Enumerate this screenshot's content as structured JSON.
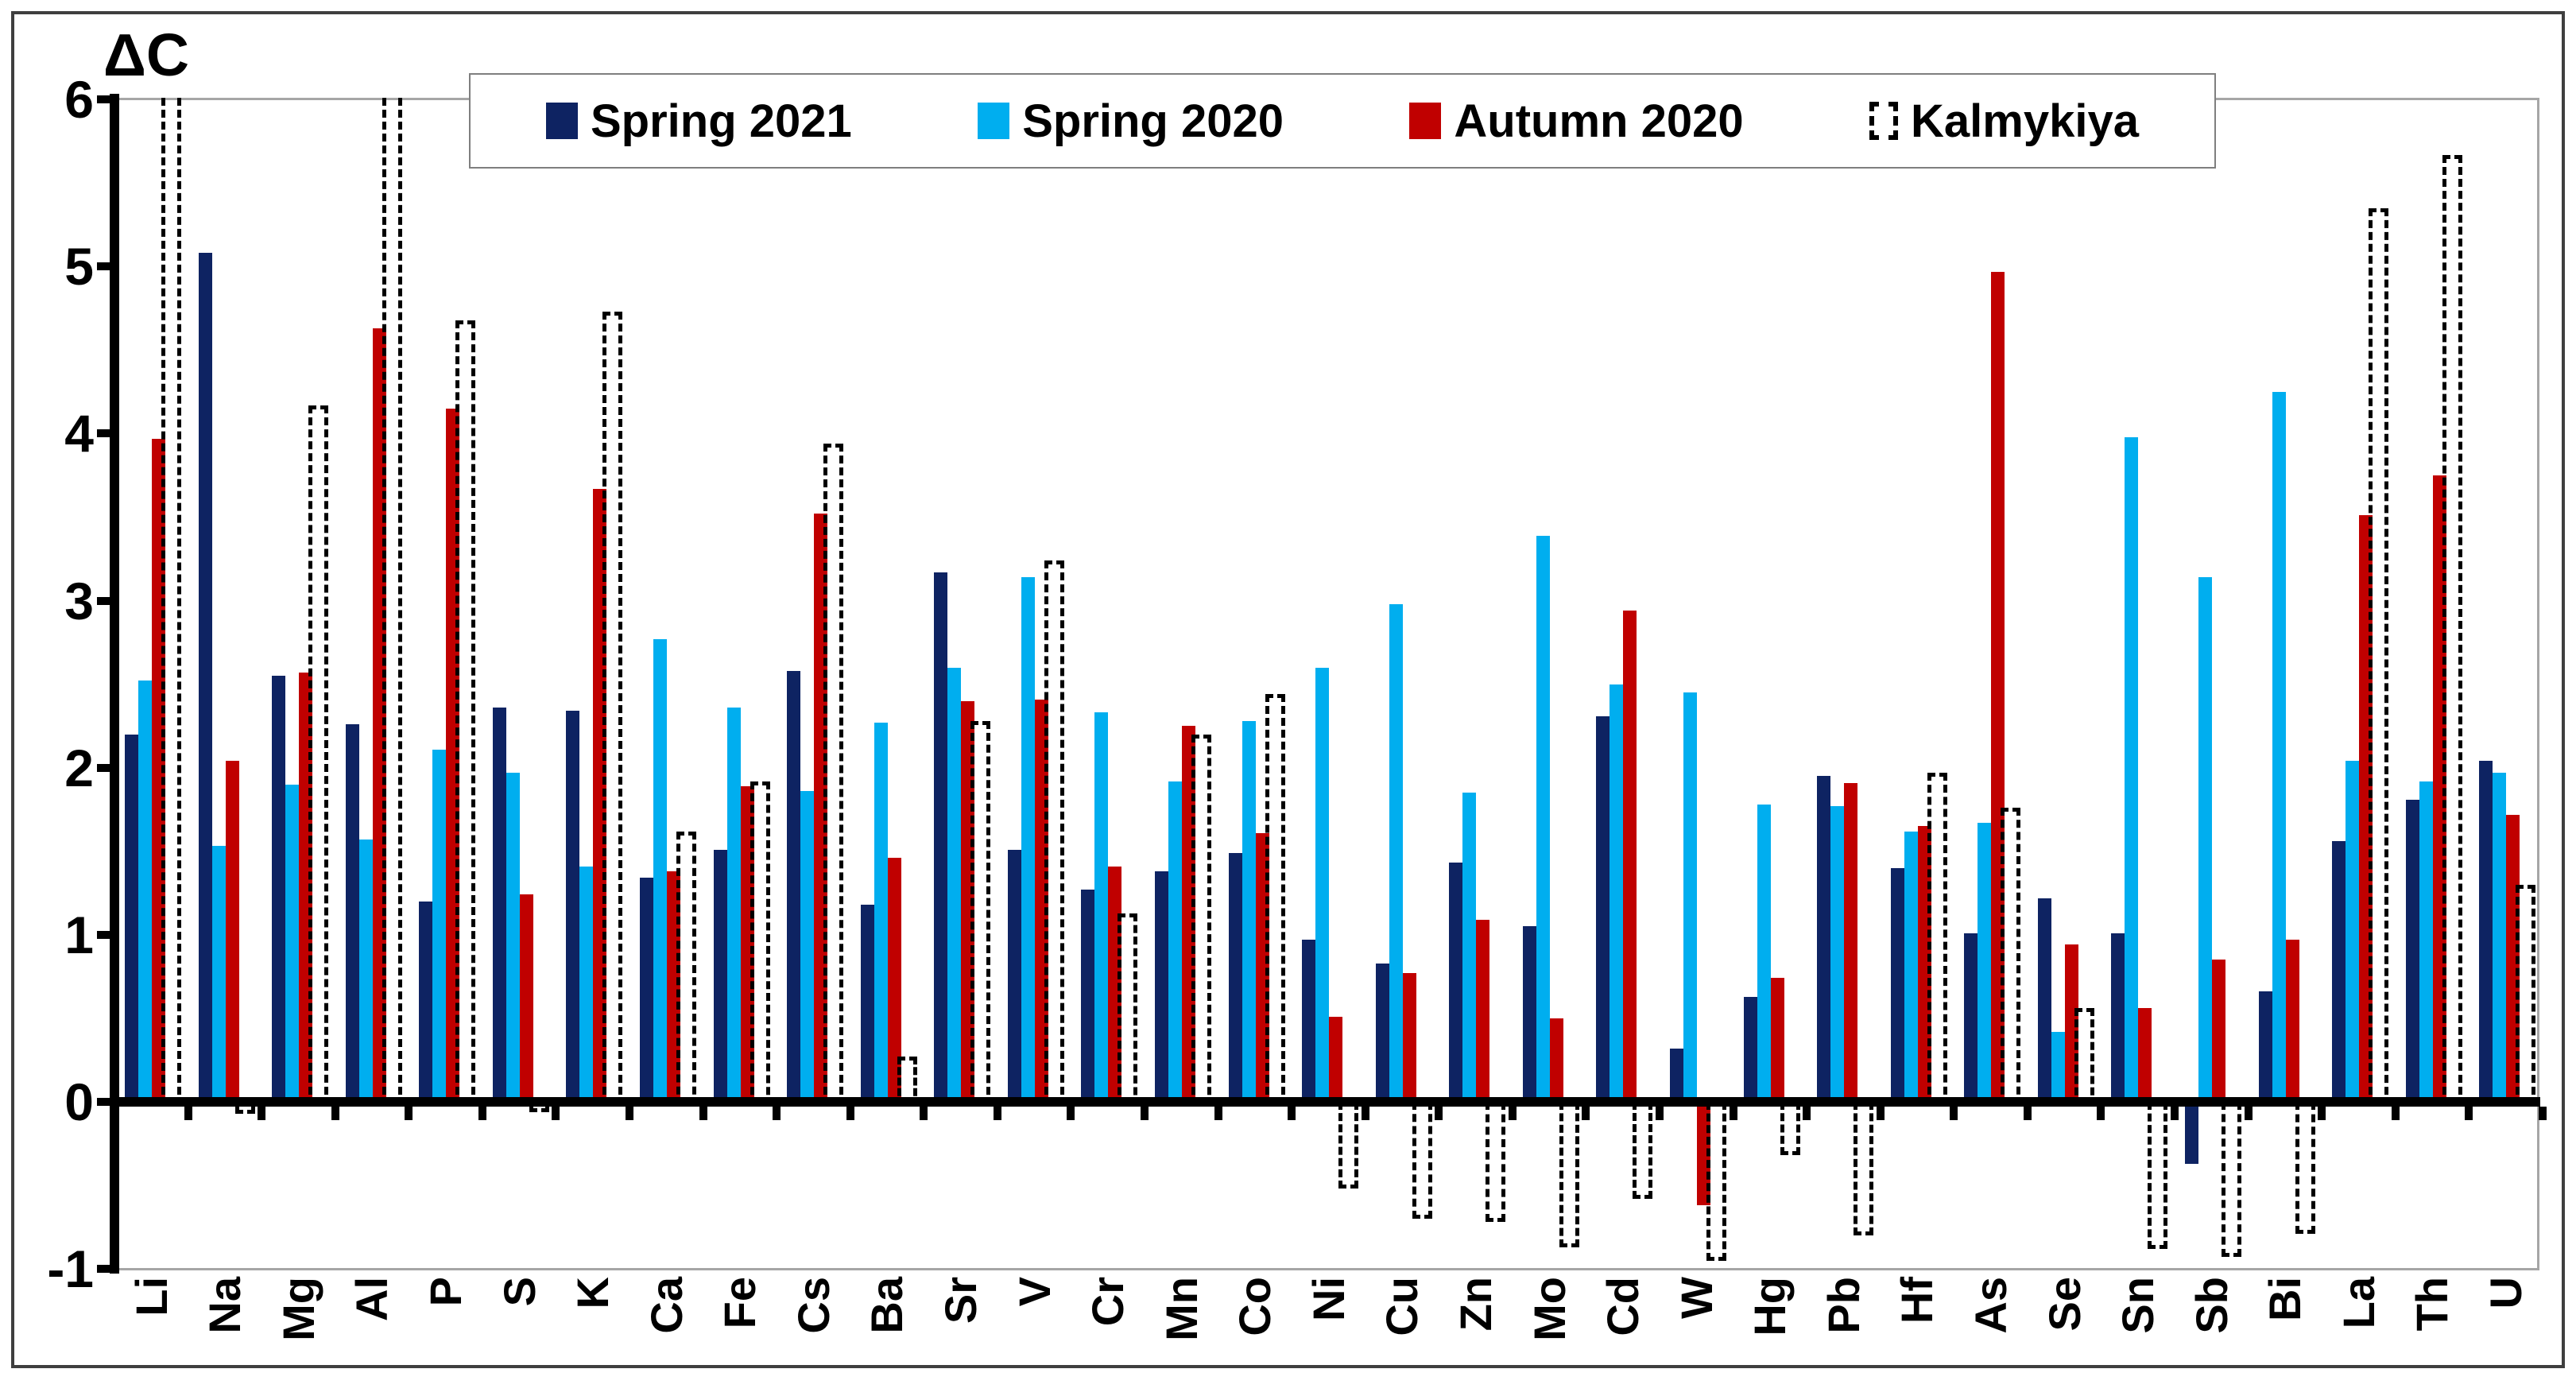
{
  "title": "ΔC",
  "legend": {
    "items": [
      {
        "label": "Spring 2021",
        "color": "#0E2362",
        "style": "solid"
      },
      {
        "label": "Spring 2020",
        "color": "#00AEEF",
        "style": "solid"
      },
      {
        "label": "Autumn 2020",
        "color": "#C00000",
        "style": "solid"
      },
      {
        "label": "Kalmykiya",
        "color": "#000000",
        "style": "dashed-outline"
      }
    ]
  },
  "chart_data": {
    "type": "bar",
    "title": "ΔC",
    "ylabel": "ΔC",
    "xlabel": "",
    "ylim": [
      -1,
      6
    ],
    "yticks": [
      6,
      5,
      4,
      3,
      2,
      1,
      0,
      -1
    ],
    "grid": "border lines at y=6 and y=-1 only",
    "legend_position": "top-center",
    "categories": [
      "Li",
      "Na",
      "Mg",
      "Al",
      "P",
      "S",
      "K",
      "Ca",
      "Fe",
      "Cs",
      "Ba",
      "Sr",
      "V",
      "Cr",
      "Mn",
      "Co",
      "Ni",
      "Cu",
      "Zn",
      "Mo",
      "Cd",
      "W",
      "Hg",
      "Pb",
      "Hf",
      "As",
      "Se",
      "Sn",
      "Sb",
      "Bi",
      "La",
      "Th",
      "U"
    ],
    "series": [
      {
        "name": "Spring 2021",
        "color": "#0E2362",
        "style": "solid",
        "values": [
          2.2,
          5.08,
          2.55,
          2.26,
          1.2,
          2.36,
          2.34,
          1.34,
          1.51,
          2.58,
          1.18,
          3.17,
          1.51,
          1.27,
          1.38,
          1.49,
          0.97,
          0.83,
          1.43,
          1.05,
          2.31,
          0.32,
          0.63,
          1.95,
          1.4,
          1.01,
          1.22,
          1.01,
          -0.37,
          0.66,
          1.56,
          1.81,
          2.04
        ]
      },
      {
        "name": "Spring 2020",
        "color": "#00AEEF",
        "style": "solid",
        "values": [
          2.52,
          1.53,
          1.9,
          1.57,
          2.11,
          1.97,
          1.41,
          2.77,
          2.36,
          1.86,
          2.27,
          2.6,
          3.14,
          2.33,
          1.92,
          2.28,
          2.6,
          2.98,
          1.85,
          3.39,
          2.5,
          2.45,
          1.78,
          1.77,
          1.62,
          1.67,
          0.42,
          3.98,
          3.14,
          4.25,
          2.04,
          1.92,
          1.97
        ]
      },
      {
        "name": "Autumn 2020",
        "color": "#C00000",
        "style": "solid",
        "values": [
          3.97,
          2.04,
          2.57,
          4.63,
          4.15,
          1.24,
          3.67,
          1.38,
          1.89,
          3.52,
          1.46,
          2.4,
          2.41,
          1.41,
          2.25,
          1.61,
          0.51,
          0.77,
          1.09,
          0.5,
          2.94,
          -0.62,
          0.74,
          1.91,
          1.65,
          4.97,
          0.94,
          0.56,
          0.85,
          0.97,
          3.51,
          3.75,
          1.72
        ]
      },
      {
        "name": "Kalmykiya",
        "color": "#000000",
        "style": "dashed-outline",
        "values": [
          6.4,
          -0.07,
          4.17,
          6.4,
          4.68,
          -0.06,
          4.73,
          1.62,
          1.92,
          3.94,
          0.27,
          2.28,
          3.24,
          1.13,
          2.2,
          2.44,
          -0.52,
          -0.7,
          -0.72,
          -0.87,
          -0.58,
          -0.95,
          -0.32,
          -0.8,
          1.97,
          1.76,
          0.56,
          -0.88,
          -0.93,
          -0.79,
          5.35,
          5.67,
          1.3
        ],
        "clipped_above_axis_max": [
          "Li",
          "Al"
        ]
      }
    ],
    "note": "Kalmykiya bars for Li and Al exceed the y-axis maximum of 6 and are clipped at the top of the plot area."
  }
}
